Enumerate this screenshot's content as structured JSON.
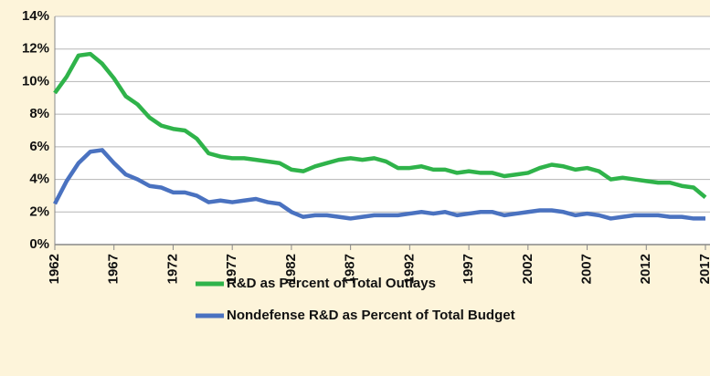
{
  "chart_data": {
    "type": "line",
    "x": [
      1962,
      1963,
      1964,
      1965,
      1966,
      1967,
      1968,
      1969,
      1970,
      1971,
      1972,
      1973,
      1974,
      1975,
      1976,
      1977,
      1978,
      1979,
      1980,
      1981,
      1982,
      1983,
      1984,
      1985,
      1986,
      1987,
      1988,
      1989,
      1990,
      1991,
      1992,
      1993,
      1994,
      1995,
      1996,
      1997,
      1998,
      1999,
      2000,
      2001,
      2002,
      2003,
      2004,
      2005,
      2006,
      2007,
      2008,
      2009,
      2010,
      2011,
      2012,
      2013,
      2014,
      2015,
      2016,
      2017
    ],
    "series": [
      {
        "name": "R&D as Percent of Total Outlays",
        "color": "#2fb34a",
        "values": [
          9.3,
          10.3,
          11.6,
          11.7,
          11.1,
          10.2,
          9.1,
          8.6,
          7.8,
          7.3,
          7.1,
          7.0,
          6.5,
          5.6,
          5.4,
          5.3,
          5.3,
          5.2,
          5.1,
          5.0,
          4.6,
          4.5,
          4.8,
          5.0,
          5.2,
          5.3,
          5.2,
          5.3,
          5.1,
          4.7,
          4.7,
          4.8,
          4.6,
          4.6,
          4.4,
          4.5,
          4.4,
          4.4,
          4.2,
          4.3,
          4.4,
          4.7,
          4.9,
          4.8,
          4.6,
          4.7,
          4.5,
          4.0,
          4.1,
          4.0,
          3.9,
          3.8,
          3.8,
          3.6,
          3.5,
          2.9
        ]
      },
      {
        "name": "Nondefense R&D as Percent of Total Budget",
        "color": "#4a72c0",
        "values": [
          2.5,
          3.9,
          5.0,
          5.7,
          5.8,
          5.0,
          4.3,
          4.0,
          3.6,
          3.5,
          3.2,
          3.2,
          3.0,
          2.6,
          2.7,
          2.6,
          2.7,
          2.8,
          2.6,
          2.5,
          2.0,
          1.7,
          1.8,
          1.8,
          1.7,
          1.6,
          1.7,
          1.8,
          1.8,
          1.8,
          1.9,
          2.0,
          1.9,
          2.0,
          1.8,
          1.9,
          2.0,
          2.0,
          1.8,
          1.9,
          2.0,
          2.1,
          2.1,
          2.0,
          1.8,
          1.9,
          1.8,
          1.6,
          1.7,
          1.8,
          1.8,
          1.8,
          1.7,
          1.7,
          1.6,
          1.6
        ]
      }
    ],
    "xlim": [
      1962,
      2017
    ],
    "xticks": [
      1962,
      1967,
      1972,
      1977,
      1982,
      1987,
      1992,
      1997,
      2002,
      2007,
      2012,
      2017
    ],
    "ylim": [
      0,
      14
    ],
    "yticks": [
      {
        "value": 0,
        "label": "0%"
      },
      {
        "value": 2,
        "label": "2%"
      },
      {
        "value": 4,
        "label": "4%"
      },
      {
        "value": 6,
        "label": "6%"
      },
      {
        "value": 8,
        "label": "8%"
      },
      {
        "value": 10,
        "label": "10%"
      },
      {
        "value": 12,
        "label": "12%"
      },
      {
        "value": 14,
        "label": "14%"
      }
    ],
    "grid": true,
    "legend": "bottom"
  }
}
